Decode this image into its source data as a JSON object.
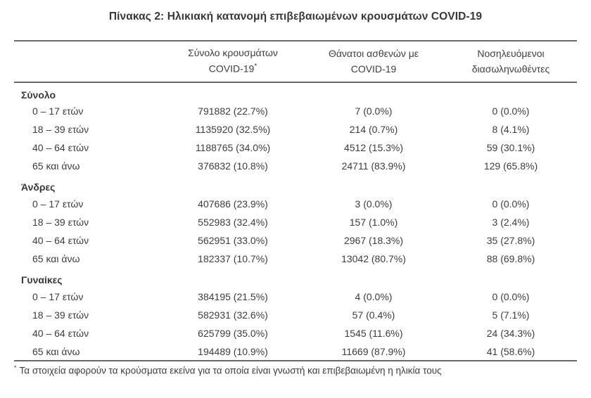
{
  "title": "Πίνακας 2: Ηλικιακή κατανομή επιβεβαιωμένων κρουσμάτων COVID-19",
  "table": {
    "columns": [
      {
        "line1": "Σύνολο κρουσμάτων",
        "line2": "COVID-19",
        "sup": "*"
      },
      {
        "line1": "Θάνατοι ασθενών με",
        "line2": "COVID-19",
        "sup": ""
      },
      {
        "line1": "Νοσηλευόμενοι",
        "line2": "διασωληνωθέντες",
        "sup": ""
      }
    ],
    "sections": [
      {
        "label": "Σύνολο",
        "rows": [
          {
            "age": "0 – 17 ετών",
            "cases": "791882 (22.7%)",
            "deaths": "7 (0.0%)",
            "intubated": "0 (0.0%)"
          },
          {
            "age": "18 – 39 ετών",
            "cases": "1135920 (32.5%)",
            "deaths": "214 (0.7%)",
            "intubated": "8 (4.1%)"
          },
          {
            "age": "40 – 64 ετών",
            "cases": "1188765 (34.0%)",
            "deaths": "4512 (15.3%)",
            "intubated": "59 (30.1%)"
          },
          {
            "age": "65 και άνω",
            "cases": "376832 (10.8%)",
            "deaths": "24711 (83.9%)",
            "intubated": "129 (65.8%)"
          }
        ]
      },
      {
        "label": "Άνδρες",
        "rows": [
          {
            "age": "0 – 17 ετών",
            "cases": "407686 (23.9%)",
            "deaths": "3 (0.0%)",
            "intubated": "0 (0.0%)"
          },
          {
            "age": "18 – 39 ετών",
            "cases": "552983 (32.4%)",
            "deaths": "157 (1.0%)",
            "intubated": "3 (2.4%)"
          },
          {
            "age": "40 – 64 ετών",
            "cases": "562951 (33.0%)",
            "deaths": "2967 (18.3%)",
            "intubated": "35 (27.8%)"
          },
          {
            "age": "65 και άνω",
            "cases": "182337 (10.7%)",
            "deaths": "13042 (80.7%)",
            "intubated": "88 (69.8%)"
          }
        ]
      },
      {
        "label": "Γυναίκες",
        "rows": [
          {
            "age": "0 – 17 ετών",
            "cases": "384195 (21.5%)",
            "deaths": "4 (0.0%)",
            "intubated": "0 (0.0%)"
          },
          {
            "age": "18 – 39 ετών",
            "cases": "582931 (32.6%)",
            "deaths": "57 (0.4%)",
            "intubated": "5 (7.1%)"
          },
          {
            "age": "40 – 64 ετών",
            "cases": "625799 (35.0%)",
            "deaths": "1545 (11.6%)",
            "intubated": "24 (34.3%)"
          },
          {
            "age": "65 και άνω",
            "cases": "194489 (10.9%)",
            "deaths": "11669 (87.9%)",
            "intubated": "41 (58.6%)"
          }
        ]
      }
    ]
  },
  "footnote": {
    "marker": "*",
    "text": "Τα στοιχεία αφορούν τα κρούσματα εκείνα για τα οποία είναι γνωστή και επιβεβαιωμένη η ηλικία τους"
  },
  "colors": {
    "text": "#3d3d3d",
    "border": "#6a6a6a",
    "background": "#ffffff"
  }
}
